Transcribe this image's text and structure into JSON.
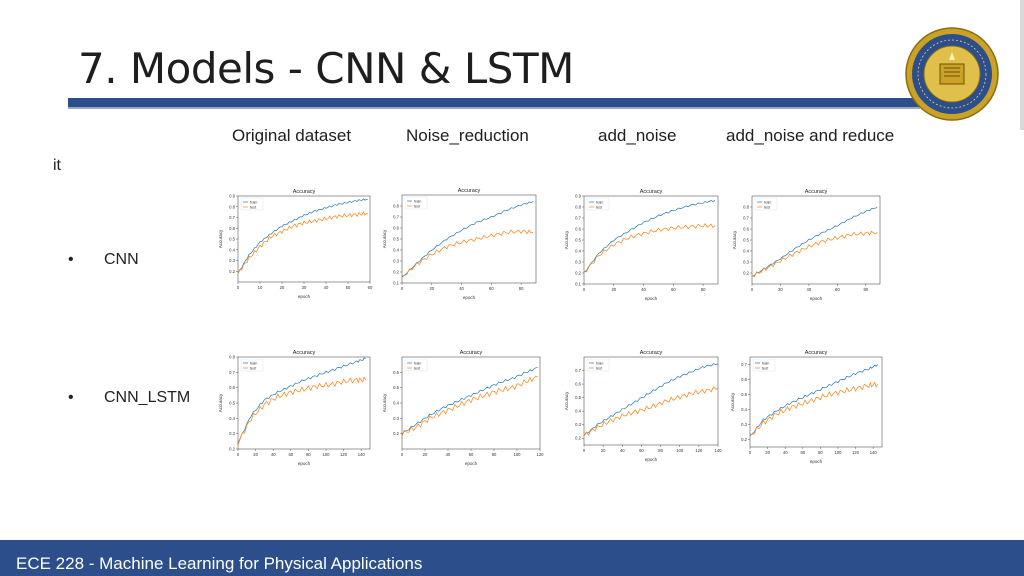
{
  "slide": {
    "title": "7. Models - CNN & LSTM",
    "it_label": "it",
    "columns": [
      "Original dataset",
      "Noise_reduction",
      "add_noise",
      "add_noise and reduce"
    ],
    "rows": [
      "CNN",
      "CNN_LSTM"
    ],
    "bullet_symbol": "•",
    "footer": "ECE 228 - Machine Learning for Physical Applications",
    "seal_icon": "uc-san-diego-seal-icon"
  },
  "colors": {
    "accent": "#2c4e8a",
    "train": "#1f77b4",
    "test": "#ff7f0e"
  },
  "chart_data": [
    {
      "type": "line",
      "title": "Accuracy",
      "xlabel": "epoch",
      "ylabel": "Accuracy",
      "legend": "top-left",
      "xlim": [
        0,
        60
      ],
      "ylim": [
        0.1,
        0.9
      ],
      "xticks": [
        0,
        10,
        20,
        30,
        40,
        50,
        60
      ],
      "yticks": [
        0.2,
        0.3,
        0.4,
        0.5,
        0.6,
        0.7,
        0.8,
        0.9
      ],
      "series": [
        {
          "name": "train",
          "x": [
            0,
            5,
            10,
            15,
            20,
            25,
            30,
            35,
            40,
            45,
            50,
            55,
            59
          ],
          "y": [
            0.18,
            0.35,
            0.47,
            0.55,
            0.62,
            0.67,
            0.72,
            0.76,
            0.79,
            0.82,
            0.84,
            0.86,
            0.87
          ]
        },
        {
          "name": "test",
          "x": [
            0,
            5,
            10,
            15,
            20,
            25,
            30,
            35,
            40,
            45,
            50,
            55,
            59
          ],
          "y": [
            0.18,
            0.32,
            0.43,
            0.52,
            0.57,
            0.62,
            0.65,
            0.67,
            0.69,
            0.71,
            0.72,
            0.73,
            0.74
          ]
        }
      ]
    },
    {
      "type": "line",
      "title": "Accuracy",
      "xlabel": "epoch",
      "ylabel": "Accuracy",
      "legend": "top-left",
      "xlim": [
        0,
        90
      ],
      "ylim": [
        0.1,
        0.9
      ],
      "xticks": [
        0,
        20,
        40,
        60,
        80
      ],
      "yticks": [
        0.1,
        0.2,
        0.3,
        0.4,
        0.5,
        0.6,
        0.7,
        0.8
      ],
      "series": [
        {
          "name": "train",
          "x": [
            0,
            10,
            20,
            30,
            40,
            50,
            60,
            70,
            80,
            88
          ],
          "y": [
            0.15,
            0.28,
            0.4,
            0.5,
            0.58,
            0.65,
            0.7,
            0.76,
            0.81,
            0.84
          ]
        },
        {
          "name": "test",
          "x": [
            0,
            10,
            20,
            30,
            40,
            50,
            60,
            70,
            80,
            88
          ],
          "y": [
            0.15,
            0.27,
            0.36,
            0.43,
            0.47,
            0.5,
            0.53,
            0.56,
            0.57,
            0.56
          ]
        }
      ]
    },
    {
      "type": "line",
      "title": "Accuracy",
      "xlabel": "epoch",
      "ylabel": "Accuracy",
      "legend": "top-left",
      "xlim": [
        0,
        90
      ],
      "ylim": [
        0.1,
        0.9
      ],
      "xticks": [
        0,
        20,
        40,
        60,
        80
      ],
      "yticks": [
        0.1,
        0.2,
        0.3,
        0.4,
        0.5,
        0.6,
        0.7,
        0.8,
        0.9
      ],
      "series": [
        {
          "name": "train",
          "x": [
            0,
            10,
            20,
            30,
            40,
            50,
            60,
            70,
            80,
            88
          ],
          "y": [
            0.2,
            0.38,
            0.5,
            0.58,
            0.66,
            0.72,
            0.77,
            0.81,
            0.84,
            0.86
          ]
        },
        {
          "name": "test",
          "x": [
            0,
            10,
            20,
            30,
            40,
            50,
            60,
            70,
            80,
            88
          ],
          "y": [
            0.2,
            0.36,
            0.46,
            0.52,
            0.56,
            0.59,
            0.61,
            0.62,
            0.63,
            0.63
          ]
        }
      ]
    },
    {
      "type": "line",
      "title": "Accuracy",
      "xlabel": "epoch",
      "ylabel": "Accuracy",
      "legend": "top-left",
      "xlim": [
        0,
        90
      ],
      "ylim": [
        0.1,
        0.9
      ],
      "xticks": [
        0,
        20,
        40,
        60,
        80
      ],
      "yticks": [
        0.2,
        0.3,
        0.4,
        0.5,
        0.6,
        0.7,
        0.8
      ],
      "series": [
        {
          "name": "train",
          "x": [
            0,
            10,
            20,
            30,
            40,
            50,
            60,
            70,
            80,
            88
          ],
          "y": [
            0.17,
            0.25,
            0.33,
            0.42,
            0.5,
            0.57,
            0.63,
            0.7,
            0.76,
            0.8
          ]
        },
        {
          "name": "test",
          "x": [
            0,
            10,
            20,
            30,
            40,
            50,
            60,
            70,
            80,
            88
          ],
          "y": [
            0.17,
            0.24,
            0.31,
            0.38,
            0.44,
            0.49,
            0.52,
            0.55,
            0.56,
            0.57
          ]
        }
      ]
    },
    {
      "type": "line",
      "title": "Accuracy",
      "xlabel": "epoch",
      "ylabel": "Accuracy",
      "legend": "top-left",
      "xlim": [
        0,
        150
      ],
      "ylim": [
        0.2,
        0.8
      ],
      "xticks": [
        0,
        20,
        40,
        60,
        80,
        100,
        120,
        140
      ],
      "yticks": [
        0.2,
        0.3,
        0.4,
        0.5,
        0.6,
        0.7,
        0.8
      ],
      "series": [
        {
          "name": "train",
          "x": [
            0,
            15,
            30,
            45,
            60,
            75,
            90,
            105,
            120,
            135,
            145
          ],
          "y": [
            0.24,
            0.42,
            0.52,
            0.57,
            0.61,
            0.65,
            0.68,
            0.71,
            0.74,
            0.77,
            0.79
          ]
        },
        {
          "name": "test",
          "x": [
            0,
            15,
            30,
            45,
            60,
            75,
            90,
            105,
            120,
            135,
            145
          ],
          "y": [
            0.24,
            0.4,
            0.49,
            0.54,
            0.57,
            0.59,
            0.61,
            0.62,
            0.64,
            0.65,
            0.65
          ]
        }
      ]
    },
    {
      "type": "line",
      "title": "Accuracy",
      "xlabel": "epoch",
      "ylabel": "Accuracy",
      "legend": "top-left",
      "xlim": [
        0,
        120
      ],
      "ylim": [
        0.1,
        0.7
      ],
      "xticks": [
        0,
        20,
        40,
        60,
        80,
        100,
        120
      ],
      "yticks": [
        0.2,
        0.3,
        0.4,
        0.5,
        0.6
      ],
      "series": [
        {
          "name": "train",
          "x": [
            0,
            12,
            24,
            36,
            48,
            60,
            72,
            84,
            96,
            108,
            118
          ],
          "y": [
            0.2,
            0.26,
            0.32,
            0.37,
            0.41,
            0.45,
            0.49,
            0.53,
            0.56,
            0.6,
            0.63
          ]
        },
        {
          "name": "test",
          "x": [
            0,
            12,
            24,
            36,
            48,
            60,
            72,
            84,
            96,
            108,
            118
          ],
          "y": [
            0.2,
            0.24,
            0.3,
            0.34,
            0.38,
            0.42,
            0.45,
            0.48,
            0.5,
            0.54,
            0.57
          ]
        }
      ]
    },
    {
      "type": "line",
      "title": "Accuracy",
      "xlabel": "epoch",
      "ylabel": "Accuracy",
      "legend": "top-left",
      "xlim": [
        0,
        140
      ],
      "ylim": [
        0.15,
        0.8
      ],
      "xticks": [
        0,
        20,
        40,
        60,
        80,
        100,
        120,
        140
      ],
      "yticks": [
        0.2,
        0.3,
        0.4,
        0.5,
        0.6,
        0.7
      ],
      "series": [
        {
          "name": "train",
          "x": [
            0,
            14,
            28,
            42,
            56,
            70,
            84,
            98,
            112,
            126,
            140
          ],
          "y": [
            0.22,
            0.3,
            0.36,
            0.42,
            0.48,
            0.54,
            0.6,
            0.65,
            0.69,
            0.73,
            0.75
          ]
        },
        {
          "name": "test",
          "x": [
            0,
            14,
            28,
            42,
            56,
            70,
            84,
            98,
            112,
            126,
            140
          ],
          "y": [
            0.22,
            0.28,
            0.33,
            0.37,
            0.4,
            0.43,
            0.47,
            0.5,
            0.53,
            0.55,
            0.57
          ]
        }
      ]
    },
    {
      "type": "line",
      "title": "Accuracy",
      "xlabel": "epoch",
      "ylabel": "Accuracy",
      "legend": "top-left",
      "xlim": [
        0,
        150
      ],
      "ylim": [
        0.15,
        0.75
      ],
      "xticks": [
        0,
        20,
        40,
        60,
        80,
        100,
        120,
        140
      ],
      "yticks": [
        0.2,
        0.3,
        0.4,
        0.5,
        0.6,
        0.7
      ],
      "series": [
        {
          "name": "train",
          "x": [
            0,
            15,
            30,
            45,
            60,
            75,
            90,
            105,
            120,
            135,
            145
          ],
          "y": [
            0.22,
            0.33,
            0.39,
            0.44,
            0.48,
            0.52,
            0.56,
            0.6,
            0.64,
            0.67,
            0.7
          ]
        },
        {
          "name": "test",
          "x": [
            0,
            15,
            30,
            45,
            60,
            75,
            90,
            105,
            120,
            135,
            145
          ],
          "y": [
            0.22,
            0.31,
            0.37,
            0.41,
            0.44,
            0.47,
            0.5,
            0.52,
            0.54,
            0.56,
            0.57
          ]
        }
      ]
    }
  ]
}
